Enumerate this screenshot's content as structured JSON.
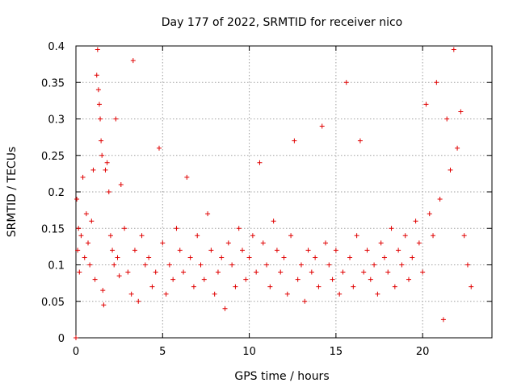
{
  "chart_data": {
    "type": "scatter",
    "title": "Day 177 of 2022, SRMTID for receiver nico",
    "xlabel": "GPS time / hours",
    "ylabel": "SRMTID / TECUs",
    "xlim": [
      0,
      24
    ],
    "ylim": [
      0,
      0.4
    ],
    "x_ticks": [
      "0",
      "5",
      "10",
      "15",
      "20"
    ],
    "y_ticks": [
      "0",
      "0.05",
      "0.1",
      "0.15",
      "0.2",
      "0.25",
      "0.3",
      "0.35",
      "0.4"
    ],
    "grid": true,
    "marker": "plus",
    "color": "#e00000",
    "series": [
      {
        "points": [
          [
            0.0,
            0.0
          ],
          [
            0.05,
            0.19
          ],
          [
            0.1,
            0.12
          ],
          [
            0.15,
            0.15
          ],
          [
            0.2,
            0.09
          ],
          [
            0.3,
            0.14
          ],
          [
            0.4,
            0.22
          ],
          [
            0.5,
            0.11
          ],
          [
            0.6,
            0.17
          ],
          [
            0.7,
            0.13
          ],
          [
            0.8,
            0.1
          ],
          [
            0.9,
            0.16
          ],
          [
            1.0,
            0.23
          ],
          [
            1.1,
            0.08
          ],
          [
            1.2,
            0.36
          ],
          [
            1.25,
            0.395
          ],
          [
            1.3,
            0.34
          ],
          [
            1.35,
            0.32
          ],
          [
            1.4,
            0.3
          ],
          [
            1.45,
            0.27
          ],
          [
            1.5,
            0.25
          ],
          [
            1.55,
            0.065
          ],
          [
            1.6,
            0.045
          ],
          [
            1.7,
            0.23
          ],
          [
            1.8,
            0.24
          ],
          [
            1.9,
            0.2
          ],
          [
            2.0,
            0.14
          ],
          [
            2.1,
            0.12
          ],
          [
            2.2,
            0.1
          ],
          [
            2.3,
            0.3
          ],
          [
            2.4,
            0.11
          ],
          [
            2.5,
            0.085
          ],
          [
            2.6,
            0.21
          ],
          [
            2.8,
            0.15
          ],
          [
            3.0,
            0.09
          ],
          [
            3.2,
            0.06
          ],
          [
            3.3,
            0.38
          ],
          [
            3.4,
            0.12
          ],
          [
            3.6,
            0.05
          ],
          [
            3.8,
            0.14
          ],
          [
            4.0,
            0.1
          ],
          [
            4.2,
            0.11
          ],
          [
            4.4,
            0.07
          ],
          [
            4.6,
            0.09
          ],
          [
            4.8,
            0.26
          ],
          [
            5.0,
            0.13
          ],
          [
            5.2,
            0.06
          ],
          [
            5.4,
            0.1
          ],
          [
            5.6,
            0.08
          ],
          [
            5.8,
            0.15
          ],
          [
            6.0,
            0.12
          ],
          [
            6.2,
            0.09
          ],
          [
            6.4,
            0.22
          ],
          [
            6.6,
            0.11
          ],
          [
            6.8,
            0.07
          ],
          [
            7.0,
            0.14
          ],
          [
            7.2,
            0.1
          ],
          [
            7.4,
            0.08
          ],
          [
            7.6,
            0.17
          ],
          [
            7.8,
            0.12
          ],
          [
            8.0,
            0.06
          ],
          [
            8.2,
            0.09
          ],
          [
            8.4,
            0.11
          ],
          [
            8.6,
            0.04
          ],
          [
            8.8,
            0.13
          ],
          [
            9.0,
            0.1
          ],
          [
            9.2,
            0.07
          ],
          [
            9.4,
            0.15
          ],
          [
            9.6,
            0.12
          ],
          [
            9.8,
            0.08
          ],
          [
            10.0,
            0.11
          ],
          [
            10.2,
            0.14
          ],
          [
            10.4,
            0.09
          ],
          [
            10.6,
            0.24
          ],
          [
            10.8,
            0.13
          ],
          [
            11.0,
            0.1
          ],
          [
            11.2,
            0.07
          ],
          [
            11.4,
            0.16
          ],
          [
            11.6,
            0.12
          ],
          [
            11.8,
            0.09
          ],
          [
            12.0,
            0.11
          ],
          [
            12.2,
            0.06
          ],
          [
            12.4,
            0.14
          ],
          [
            12.6,
            0.27
          ],
          [
            12.8,
            0.08
          ],
          [
            13.0,
            0.1
          ],
          [
            13.2,
            0.05
          ],
          [
            13.4,
            0.12
          ],
          [
            13.6,
            0.09
          ],
          [
            13.8,
            0.11
          ],
          [
            14.0,
            0.07
          ],
          [
            14.2,
            0.29
          ],
          [
            14.4,
            0.13
          ],
          [
            14.6,
            0.1
          ],
          [
            14.8,
            0.08
          ],
          [
            15.0,
            0.12
          ],
          [
            15.2,
            0.06
          ],
          [
            15.4,
            0.09
          ],
          [
            15.6,
            0.35
          ],
          [
            15.8,
            0.11
          ],
          [
            16.0,
            0.07
          ],
          [
            16.2,
            0.14
          ],
          [
            16.4,
            0.27
          ],
          [
            16.6,
            0.09
          ],
          [
            16.8,
            0.12
          ],
          [
            17.0,
            0.08
          ],
          [
            17.2,
            0.1
          ],
          [
            17.4,
            0.06
          ],
          [
            17.6,
            0.13
          ],
          [
            17.8,
            0.11
          ],
          [
            18.0,
            0.09
          ],
          [
            18.2,
            0.15
          ],
          [
            18.4,
            0.07
          ],
          [
            18.6,
            0.12
          ],
          [
            18.8,
            0.1
          ],
          [
            19.0,
            0.14
          ],
          [
            19.2,
            0.08
          ],
          [
            19.4,
            0.11
          ],
          [
            19.6,
            0.16
          ],
          [
            19.8,
            0.13
          ],
          [
            20.0,
            0.09
          ],
          [
            20.2,
            0.32
          ],
          [
            20.4,
            0.17
          ],
          [
            20.6,
            0.14
          ],
          [
            20.8,
            0.35
          ],
          [
            21.0,
            0.19
          ],
          [
            21.2,
            0.025
          ],
          [
            21.4,
            0.3
          ],
          [
            21.6,
            0.23
          ],
          [
            21.8,
            0.395
          ],
          [
            22.0,
            0.26
          ],
          [
            22.2,
            0.31
          ],
          [
            22.4,
            0.14
          ],
          [
            22.6,
            0.1
          ],
          [
            22.8,
            0.07
          ]
        ]
      }
    ]
  }
}
